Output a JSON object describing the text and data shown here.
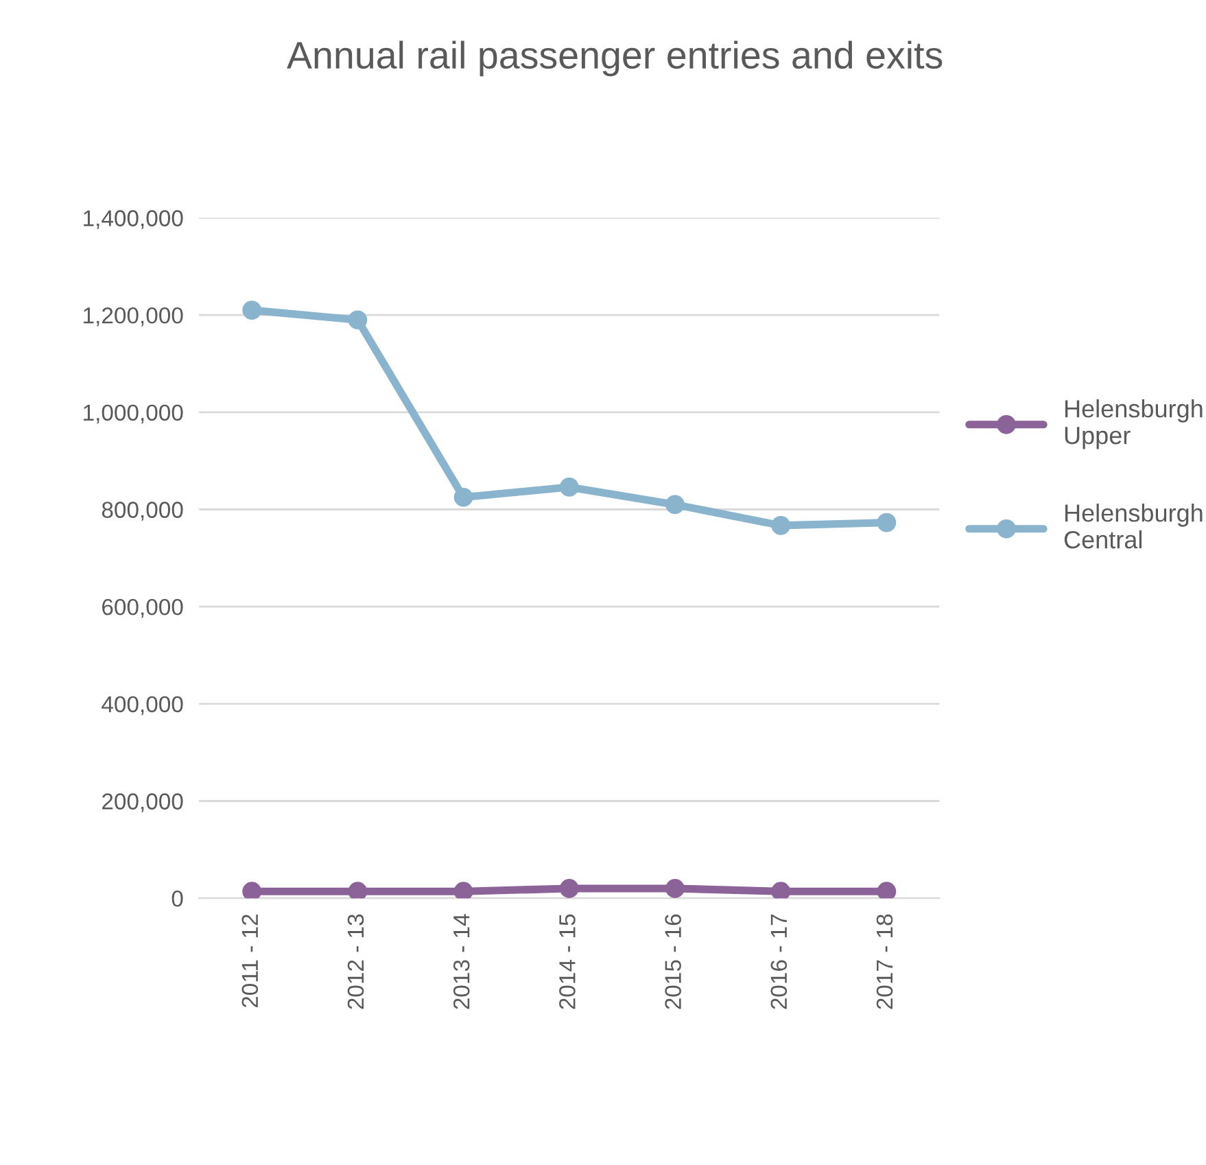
{
  "chart_data": {
    "type": "line",
    "title": "Annual rail passenger entries and exits",
    "categories": [
      "2011 - 12",
      "2012 - 13",
      "2013 - 14",
      "2014 - 15",
      "2015 - 16",
      "2016 - 17",
      "2017 - 18"
    ],
    "series": [
      {
        "name": "Helensburgh Upper",
        "color": "#8c6399",
        "values": [
          14000,
          14000,
          14000,
          20000,
          20000,
          14000,
          14000
        ]
      },
      {
        "name": "Helensburgh Central",
        "color": "#8ab4cd",
        "values": [
          1210000,
          1190000,
          825000,
          846000,
          810000,
          767000,
          773000
        ]
      }
    ],
    "ylim": [
      0,
      1400000
    ],
    "yticks": [
      {
        "value": 0,
        "label": "0"
      },
      {
        "value": 200000,
        "label": "200,000"
      },
      {
        "value": 400000,
        "label": "400,000"
      },
      {
        "value": 600000,
        "label": "600,000"
      },
      {
        "value": 800000,
        "label": "800,000"
      },
      {
        "value": 1000000,
        "label": "1,000,000"
      },
      {
        "value": 1200000,
        "label": "1,200,000"
      },
      {
        "value": 1400000,
        "label": "1,400,000"
      }
    ],
    "grid": "y",
    "legend": "right",
    "marker": "circle",
    "line_style": "solid"
  }
}
